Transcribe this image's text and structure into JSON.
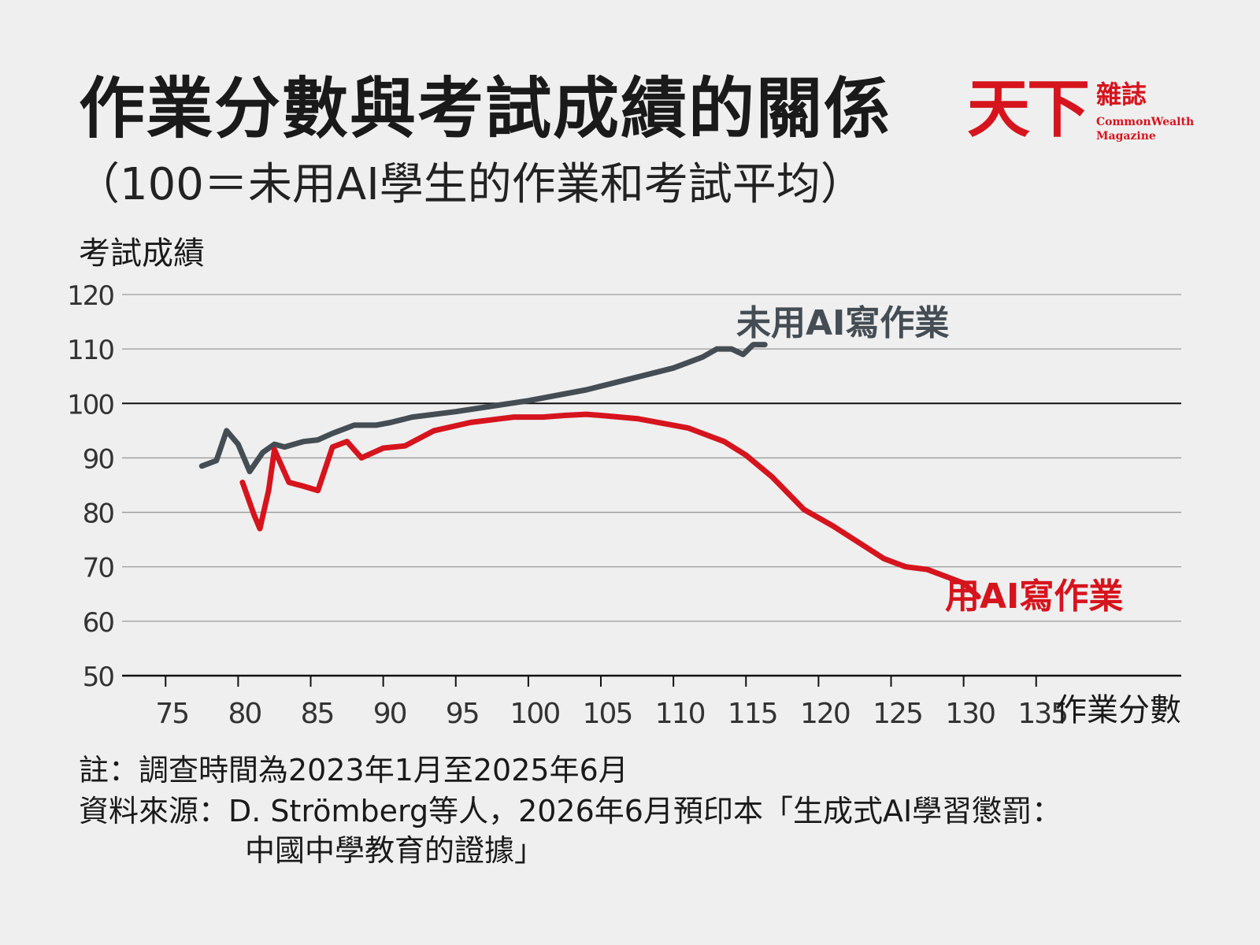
{
  "title": "作業分數與考試成績的關係",
  "subtitle": "（100＝未用AI學生的作業和考試平均）",
  "logo": {
    "mark": "天下",
    "zh": "雜誌",
    "en_line1": "CommonWealth",
    "en_line2": "Magazine"
  },
  "colors": {
    "no_ai": "#454d54",
    "ai": "#d6141d",
    "grid": "#9a9a9a",
    "axis": "#111111"
  },
  "footer": {
    "note": "註：調查時間為2023年1月至2025年6月",
    "source_line1": "資料來源：D. Strömberg等人，2026年6月預印本「生成式AI學習懲罰：",
    "source_line2": "中國中學教育的證據」"
  },
  "chart_data": {
    "type": "line",
    "ylabel": "考試成績",
    "xlabel": "作業分數",
    "xlim": [
      72,
      145
    ],
    "ylim": [
      50,
      120
    ],
    "x_ticks": [
      75,
      80,
      85,
      90,
      95,
      100,
      105,
      110,
      115,
      120,
      125,
      130,
      135
    ],
    "y_ticks": [
      50,
      60,
      70,
      80,
      90,
      100,
      110,
      120
    ],
    "grid": true,
    "legend": "direct-labels",
    "series": [
      {
        "name": "未用AI寫作業",
        "color": "#454d54",
        "points": [
          [
            77.5,
            88.5
          ],
          [
            78.5,
            89.5
          ],
          [
            79.2,
            95
          ],
          [
            80,
            92.5
          ],
          [
            80.8,
            87.5
          ],
          [
            81.7,
            91
          ],
          [
            82.5,
            92.5
          ],
          [
            83.2,
            92
          ],
          [
            84.5,
            93
          ],
          [
            85.5,
            93.3
          ],
          [
            86.5,
            94.5
          ],
          [
            88,
            96
          ],
          [
            89.5,
            96
          ],
          [
            90.5,
            96.5
          ],
          [
            92,
            97.5
          ],
          [
            95,
            98.5
          ],
          [
            100,
            100.5
          ],
          [
            104,
            102.5
          ],
          [
            107,
            104.5
          ],
          [
            110,
            106.5
          ],
          [
            112,
            108.5
          ],
          [
            113,
            110
          ],
          [
            114,
            110
          ],
          [
            114.8,
            109
          ],
          [
            115.5,
            110.8
          ],
          [
            116.3,
            110.8
          ]
        ]
      },
      {
        "name": "用AI寫作業",
        "color": "#d6141d",
        "points": [
          [
            80.3,
            85.5
          ],
          [
            81.1,
            79.5
          ],
          [
            81.5,
            77
          ],
          [
            82.1,
            84
          ],
          [
            82.5,
            91.5
          ],
          [
            83.5,
            85.5
          ],
          [
            84.5,
            84.8
          ],
          [
            85.5,
            84
          ],
          [
            86.5,
            92
          ],
          [
            87.5,
            93
          ],
          [
            88.5,
            90
          ],
          [
            90,
            91.8
          ],
          [
            91.5,
            92.2
          ],
          [
            93.5,
            95
          ],
          [
            96,
            96.5
          ],
          [
            99,
            97.5
          ],
          [
            101,
            97.5
          ],
          [
            102.5,
            97.8
          ],
          [
            104,
            98
          ],
          [
            105,
            97.8
          ],
          [
            107.5,
            97.2
          ],
          [
            111,
            95.5
          ],
          [
            113.5,
            93
          ],
          [
            115,
            90.5
          ],
          [
            116.8,
            86.5
          ],
          [
            119,
            80.5
          ],
          [
            121,
            77.5
          ],
          [
            124.5,
            71.5
          ],
          [
            126,
            70
          ],
          [
            127.5,
            69.5
          ],
          [
            130,
            67
          ],
          [
            131,
            64.5
          ]
        ]
      }
    ]
  }
}
